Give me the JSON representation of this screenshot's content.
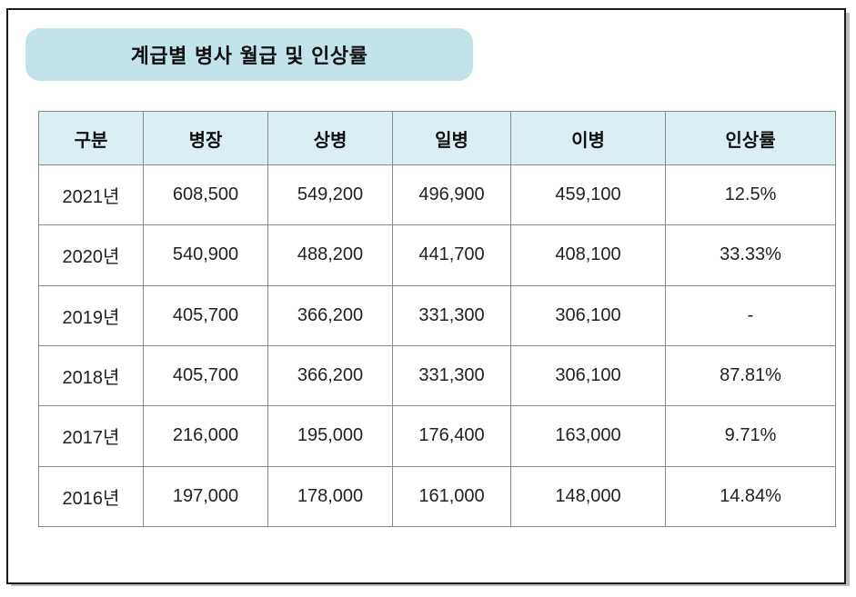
{
  "title": "계급별 병사 월급 및 인상률",
  "table": {
    "headers": [
      "구분",
      "병장",
      "상병",
      "일병",
      "이병",
      "인상률"
    ],
    "rows": [
      [
        "2021년",
        "608,500",
        "549,200",
        "496,900",
        "459,100",
        "12.5%"
      ],
      [
        "2020년",
        "540,900",
        "488,200",
        "441,700",
        "408,100",
        "33.33%"
      ],
      [
        "2019년",
        "405,700",
        "366,200",
        "331,300",
        "306,100",
        "-"
      ],
      [
        "2018년",
        "405,700",
        "366,200",
        "331,300",
        "306,100",
        "87.81%"
      ],
      [
        "2017년",
        "216,000",
        "195,000",
        "176,400",
        "163,000",
        "9.71%"
      ],
      [
        "2016년",
        "197,000",
        "178,000",
        "161,000",
        "148,000",
        "14.84%"
      ]
    ]
  },
  "colors": {
    "title_background": "#c3e3ea",
    "header_background": "#daeef3",
    "border": "#8a8a8a"
  }
}
